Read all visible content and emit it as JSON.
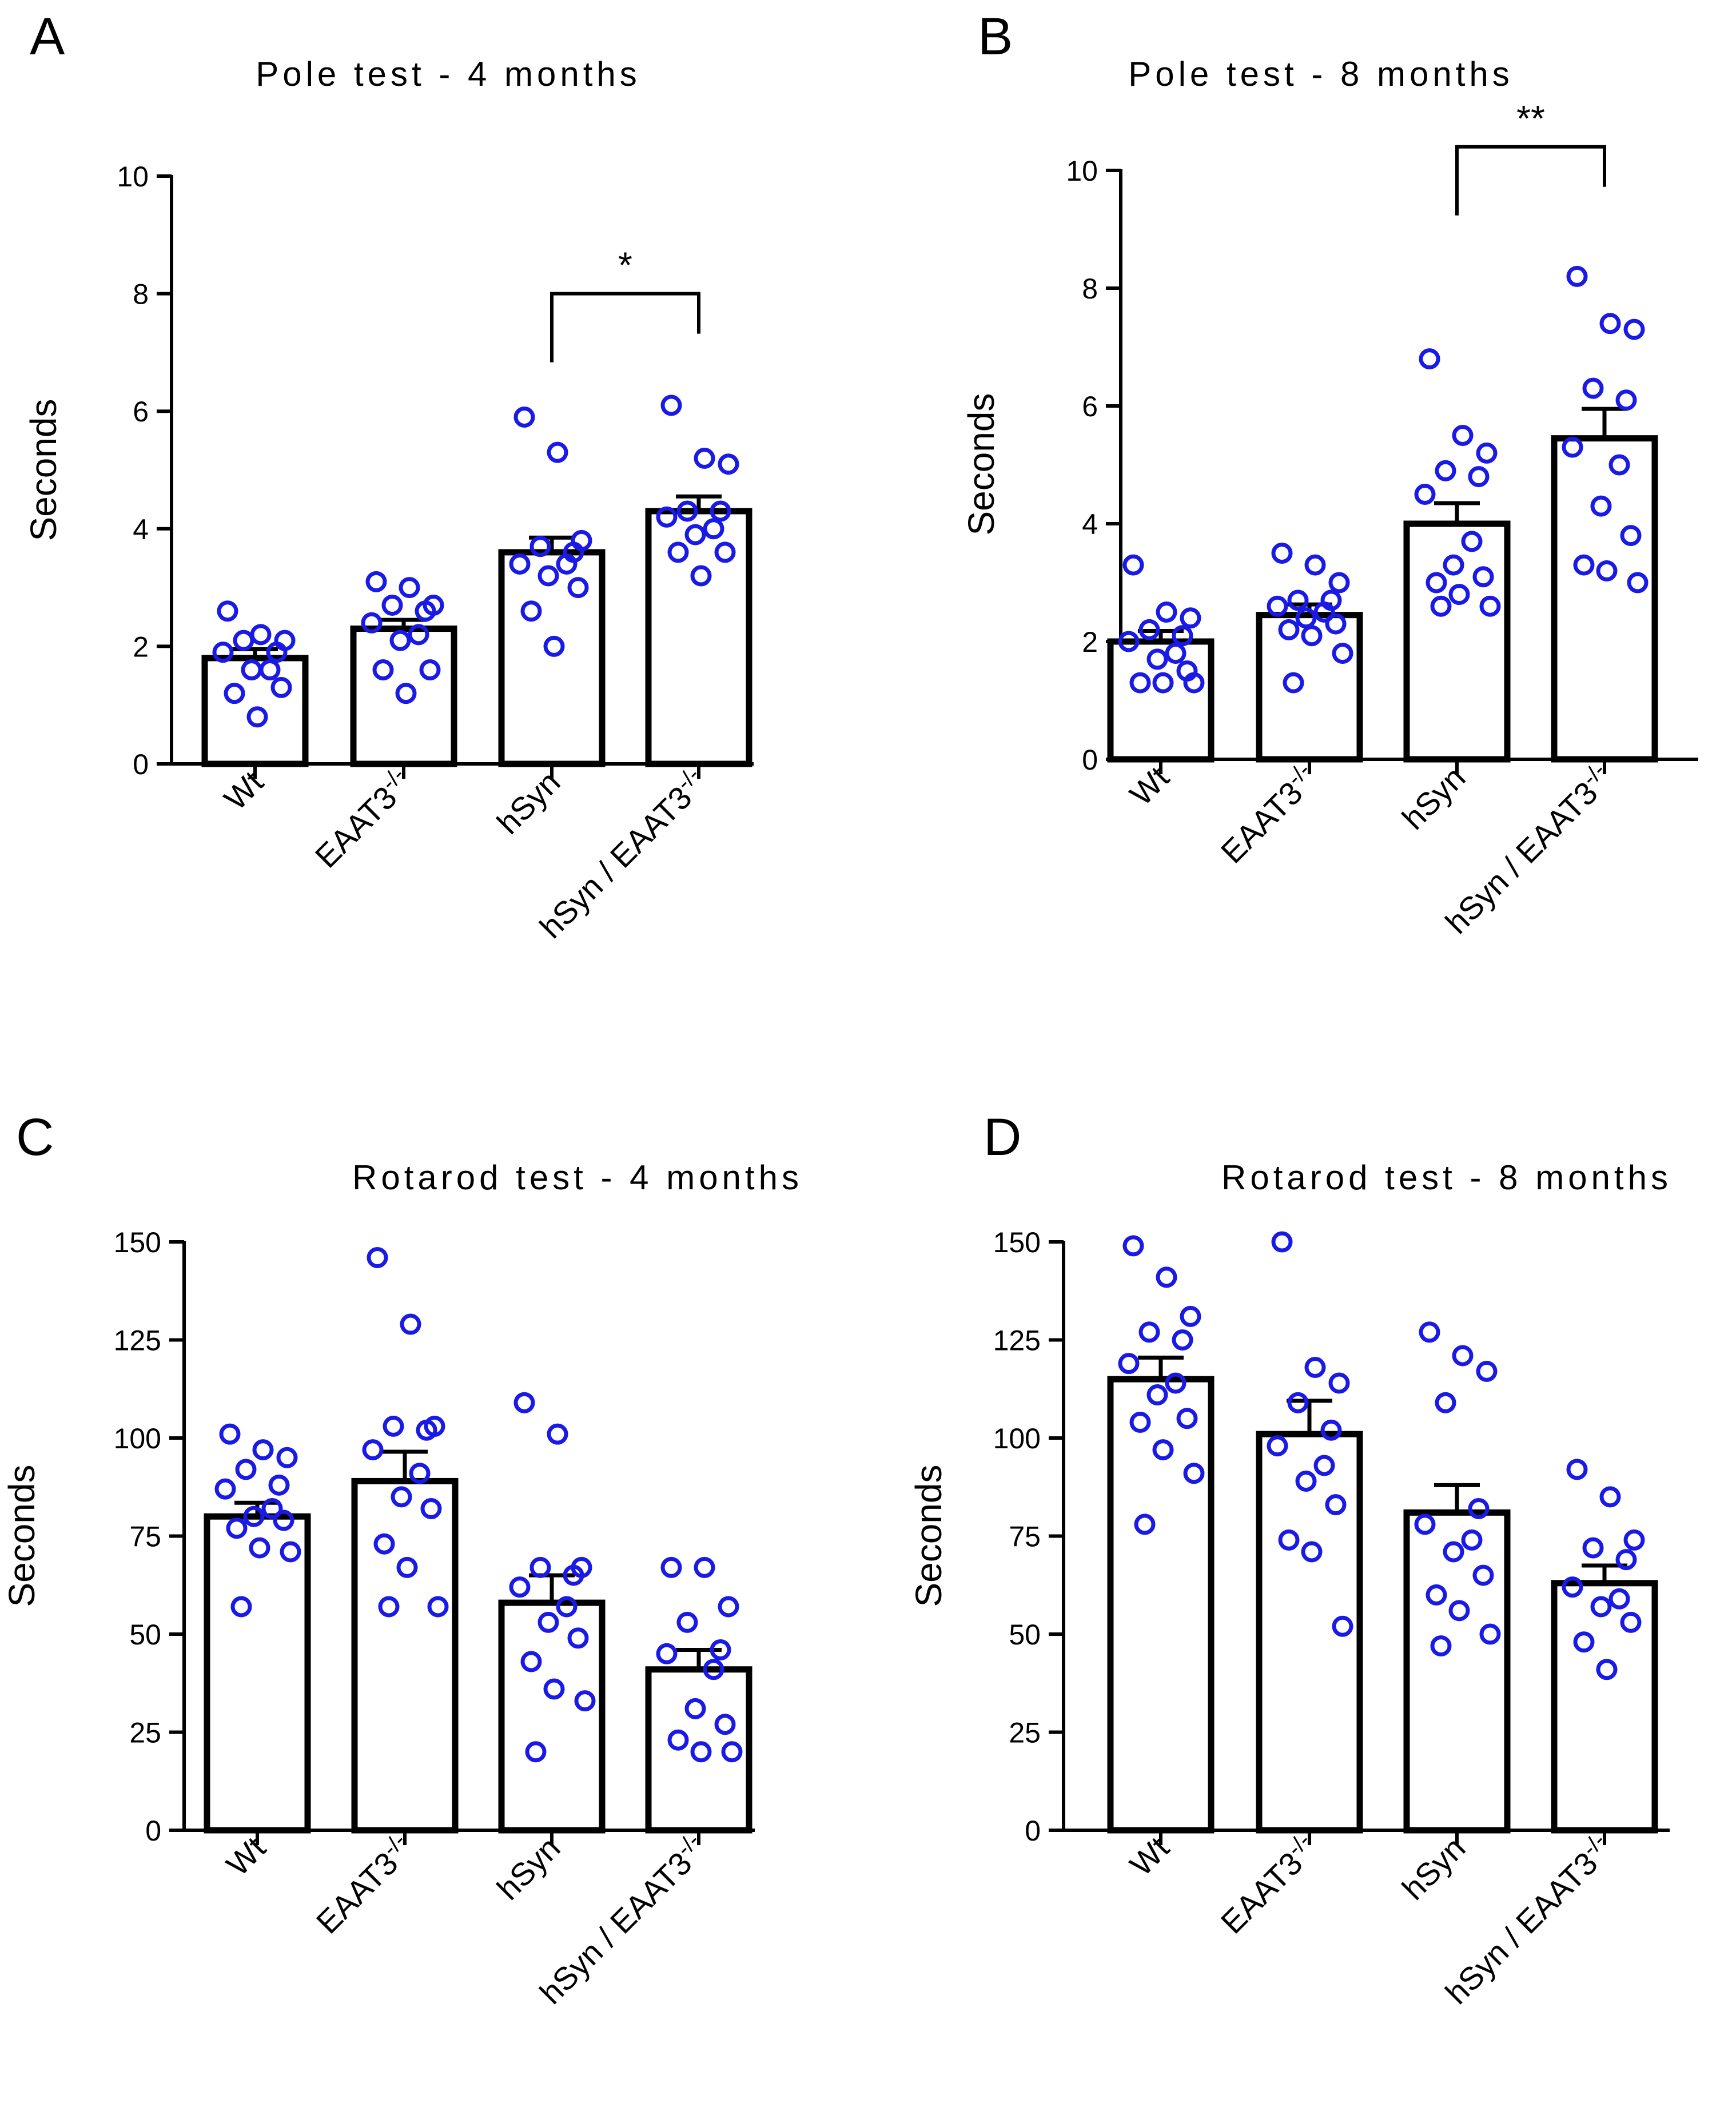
{
  "figure": {
    "colors": {
      "dots": "#1a1ae6",
      "bars": "#000000"
    }
  },
  "chart_data": [
    {
      "panel": "A",
      "type": "bar",
      "title": "Pole test - 4 months",
      "ylabel": "Seconds",
      "xlabel": "",
      "ylim": [
        0,
        10
      ],
      "yticks": [
        "0",
        "2",
        "4",
        "6",
        "8",
        "10"
      ],
      "categories": [
        "Wt",
        "EAAT3",
        "hSyn",
        "hSyn / EAAT3"
      ],
      "category_superscripts": [
        "",
        "-/-",
        "",
        "-/-"
      ],
      "means": [
        1.8,
        2.3,
        3.6,
        4.3
      ],
      "sem": [
        0.15,
        0.15,
        0.25,
        0.25
      ],
      "points": [
        [
          2.6,
          2.2,
          2.1,
          2.1,
          1.9,
          1.9,
          1.6,
          1.6,
          1.3,
          1.2,
          0.8
        ],
        [
          3.1,
          3.0,
          2.7,
          2.7,
          2.6,
          2.4,
          2.2,
          2.1,
          1.6,
          1.6,
          1.2
        ],
        [
          5.9,
          5.3,
          3.8,
          3.7,
          3.6,
          3.4,
          3.4,
          3.2,
          3.0,
          2.6,
          2.0
        ],
        [
          6.1,
          5.2,
          5.1,
          4.3,
          4.3,
          4.2,
          4.0,
          3.9,
          3.6,
          3.6,
          3.2
        ]
      ],
      "significance": {
        "label": "*",
        "from": 2,
        "to": 3,
        "y": 8.0
      }
    },
    {
      "panel": "B",
      "type": "bar",
      "title": "Pole test - 8 months",
      "ylabel": "Seconds",
      "xlabel": "",
      "ylim": [
        0,
        10
      ],
      "yticks": [
        "0",
        "2",
        "4",
        "6",
        "8",
        "10"
      ],
      "categories": [
        "Wt",
        "EAAT3",
        "hSyn",
        "hSyn / EAAT3"
      ],
      "category_superscripts": [
        "",
        "-/-",
        "",
        "-/-"
      ],
      "means": [
        2.0,
        2.45,
        4.0,
        5.45
      ],
      "sem": [
        0.18,
        0.18,
        0.35,
        0.5
      ],
      "points": [
        [
          3.3,
          2.5,
          2.4,
          2.2,
          2.1,
          2.0,
          1.8,
          1.7,
          1.5,
          1.3,
          1.3,
          1.3
        ],
        [
          3.5,
          3.3,
          3.0,
          2.7,
          2.7,
          2.6,
          2.5,
          2.4,
          2.3,
          2.2,
          2.1,
          1.8,
          1.3
        ],
        [
          6.8,
          5.5,
          5.2,
          4.9,
          4.8,
          4.5,
          3.7,
          3.3,
          3.1,
          3.0,
          2.8,
          2.6,
          2.6
        ],
        [
          8.2,
          7.4,
          7.3,
          6.3,
          6.1,
          5.3,
          5.0,
          4.3,
          3.8,
          3.3,
          3.2,
          3.0
        ]
      ],
      "significance": {
        "label": "**",
        "from": 2,
        "to": 3,
        "y": 10.4
      }
    },
    {
      "panel": "C",
      "type": "bar",
      "title": "Rotarod test - 4 months",
      "ylabel": "Seconds",
      "xlabel": "",
      "ylim": [
        0,
        150
      ],
      "yticks": [
        "0",
        "25",
        "50",
        "75",
        "100",
        "125",
        "150"
      ],
      "categories": [
        "Wt",
        "EAAT3",
        "hSyn",
        "hSyn / EAAT3"
      ],
      "category_superscripts": [
        "",
        "-/-",
        "",
        "-/-"
      ],
      "means": [
        80,
        89,
        58,
        41
      ],
      "sem": [
        3.5,
        7.5,
        7,
        5
      ],
      "points": [
        [
          101,
          97,
          95,
          92,
          88,
          87,
          82,
          80,
          79,
          77,
          72,
          71,
          57
        ],
        [
          146,
          129,
          103,
          103,
          102,
          97,
          91,
          85,
          82,
          73,
          67,
          57,
          57
        ],
        [
          109,
          101,
          67,
          67,
          65,
          62,
          57,
          53,
          49,
          43,
          36,
          33,
          20
        ],
        [
          67,
          67,
          57,
          53,
          46,
          45,
          41,
          31,
          27,
          23,
          20,
          20
        ]
      ],
      "significance": null
    },
    {
      "panel": "D",
      "type": "bar",
      "title": "Rotarod test - 8 months",
      "ylabel": "Seconds",
      "xlabel": "",
      "ylim": [
        0,
        150
      ],
      "yticks": [
        "0",
        "25",
        "50",
        "75",
        "100",
        "125",
        "150"
      ],
      "categories": [
        "Wt",
        "EAAT3",
        "hSyn",
        "hSyn / EAAT3"
      ],
      "category_superscripts": [
        "",
        "-/-",
        "",
        "-/-"
      ],
      "means": [
        115,
        101,
        81,
        63
      ],
      "sem": [
        5.5,
        8.5,
        7,
        4.5
      ],
      "points": [
        [
          149,
          141,
          131,
          127,
          125,
          119,
          114,
          111,
          105,
          104,
          97,
          91,
          78
        ],
        [
          150,
          118,
          114,
          109,
          102,
          98,
          93,
          89,
          83,
          74,
          71,
          52
        ],
        [
          127,
          121,
          117,
          109,
          82,
          78,
          74,
          71,
          65,
          60,
          56,
          50,
          47
        ],
        [
          92,
          85,
          74,
          72,
          69,
          62,
          59,
          57,
          53,
          48,
          41
        ]
      ],
      "significance": null
    }
  ]
}
